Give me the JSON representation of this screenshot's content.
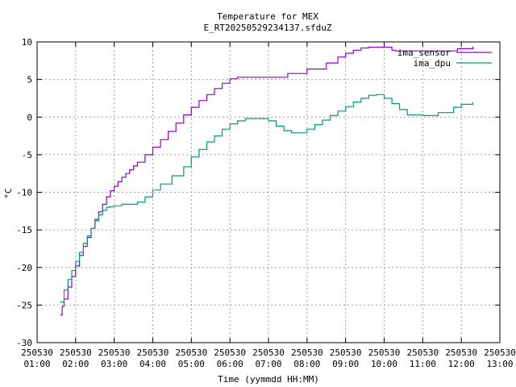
{
  "chart_data": {
    "type": "line",
    "title": "Temperature for MEX",
    "subtitle": "E_RT20250529234137.sfduZ",
    "xlabel": "Time (yymmdd HH:MM)",
    "ylabel": "°C",
    "xlim": [
      1.0,
      13.0
    ],
    "ylim": [
      -30,
      10
    ],
    "x_ticks": [
      {
        "value": 1,
        "date": "250530",
        "time": "01:00"
      },
      {
        "value": 2,
        "date": "250530",
        "time": "02:00"
      },
      {
        "value": 3,
        "date": "250530",
        "time": "03:00"
      },
      {
        "value": 4,
        "date": "250530",
        "time": "04:00"
      },
      {
        "value": 5,
        "date": "250530",
        "time": "05:00"
      },
      {
        "value": 6,
        "date": "250530",
        "time": "06:00"
      },
      {
        "value": 7,
        "date": "250530",
        "time": "07:00"
      },
      {
        "value": 8,
        "date": "250530",
        "time": "08:00"
      },
      {
        "value": 9,
        "date": "250530",
        "time": "09:00"
      },
      {
        "value": 10,
        "date": "250530",
        "time": "10:00"
      },
      {
        "value": 11,
        "date": "250530",
        "time": "11:00"
      },
      {
        "value": 12,
        "date": "250530",
        "time": "12:00"
      },
      {
        "value": 13,
        "date": "250530",
        "time": "13:00"
      }
    ],
    "y_ticks": [
      -30,
      -25,
      -20,
      -15,
      -10,
      -5,
      0,
      5,
      10
    ],
    "grid": true,
    "legend_position": "top-right",
    "series": [
      {
        "name": "ima_sensor",
        "color": "#9400d3",
        "x": [
          1.6,
          1.65,
          1.7,
          1.8,
          1.9,
          2.0,
          2.1,
          2.2,
          2.3,
          2.4,
          2.5,
          2.6,
          2.7,
          2.8,
          2.9,
          3.0,
          3.1,
          3.2,
          3.3,
          3.4,
          3.5,
          3.6,
          3.8,
          4.0,
          4.2,
          4.4,
          4.6,
          4.8,
          5.0,
          5.2,
          5.4,
          5.6,
          5.8,
          6.0,
          6.2,
          6.4,
          6.6,
          6.8,
          7.0,
          7.5,
          8.0,
          8.5,
          8.8,
          9.0,
          9.2,
          9.4,
          9.6,
          9.8,
          10.0,
          10.2,
          10.3,
          10.5,
          11.0,
          11.5,
          11.9,
          12.3
        ],
        "y": [
          -26.3,
          -25.2,
          -24.2,
          -22.6,
          -21.2,
          -19.8,
          -18.4,
          -17.2,
          -16.0,
          -14.8,
          -13.6,
          -12.6,
          -11.6,
          -10.6,
          -9.8,
          -9.2,
          -8.6,
          -8.0,
          -7.5,
          -7.0,
          -6.5,
          -6.0,
          -5.0,
          -4.0,
          -3.0,
          -1.9,
          -0.8,
          0.3,
          1.3,
          2.2,
          3.0,
          3.8,
          4.5,
          5.1,
          5.3,
          5.3,
          5.3,
          5.3,
          5.3,
          5.8,
          6.4,
          7.2,
          8.0,
          8.5,
          8.9,
          9.2,
          9.3,
          9.3,
          9.3,
          8.9,
          8.8,
          8.8,
          8.8,
          8.8,
          9.1,
          9.4
        ]
      },
      {
        "name": "ima_dpu",
        "color": "#009e73",
        "x": [
          1.6,
          1.7,
          1.8,
          1.9,
          2.0,
          2.1,
          2.2,
          2.3,
          2.4,
          2.5,
          2.6,
          2.7,
          2.8,
          2.9,
          3.0,
          3.2,
          3.6,
          3.8,
          4.0,
          4.2,
          4.5,
          4.8,
          5.0,
          5.2,
          5.4,
          5.6,
          5.8,
          6.0,
          6.2,
          6.4,
          6.6,
          6.8,
          7.0,
          7.2,
          7.4,
          7.6,
          8.0,
          8.2,
          8.4,
          8.6,
          8.8,
          9.0,
          9.2,
          9.4,
          9.6,
          9.8,
          10.0,
          10.2,
          10.4,
          10.6,
          11.0,
          11.4,
          11.8,
          12.0,
          12.3
        ],
        "y": [
          -24.6,
          -23.0,
          -21.6,
          -20.4,
          -19.2,
          -18.0,
          -16.8,
          -15.8,
          -14.8,
          -13.8,
          -13.0,
          -12.4,
          -12.0,
          -11.9,
          -11.8,
          -11.6,
          -11.3,
          -10.6,
          -9.7,
          -8.9,
          -7.8,
          -6.6,
          -5.3,
          -4.3,
          -3.3,
          -2.5,
          -1.6,
          -0.9,
          -0.5,
          -0.2,
          -0.2,
          -0.2,
          -0.5,
          -1.2,
          -1.8,
          -2.1,
          -1.6,
          -1.0,
          -0.4,
          0.2,
          0.8,
          1.4,
          2.0,
          2.5,
          2.9,
          3.0,
          2.5,
          1.8,
          1.0,
          0.3,
          0.2,
          0.6,
          1.3,
          1.7,
          2.0
        ]
      }
    ]
  }
}
